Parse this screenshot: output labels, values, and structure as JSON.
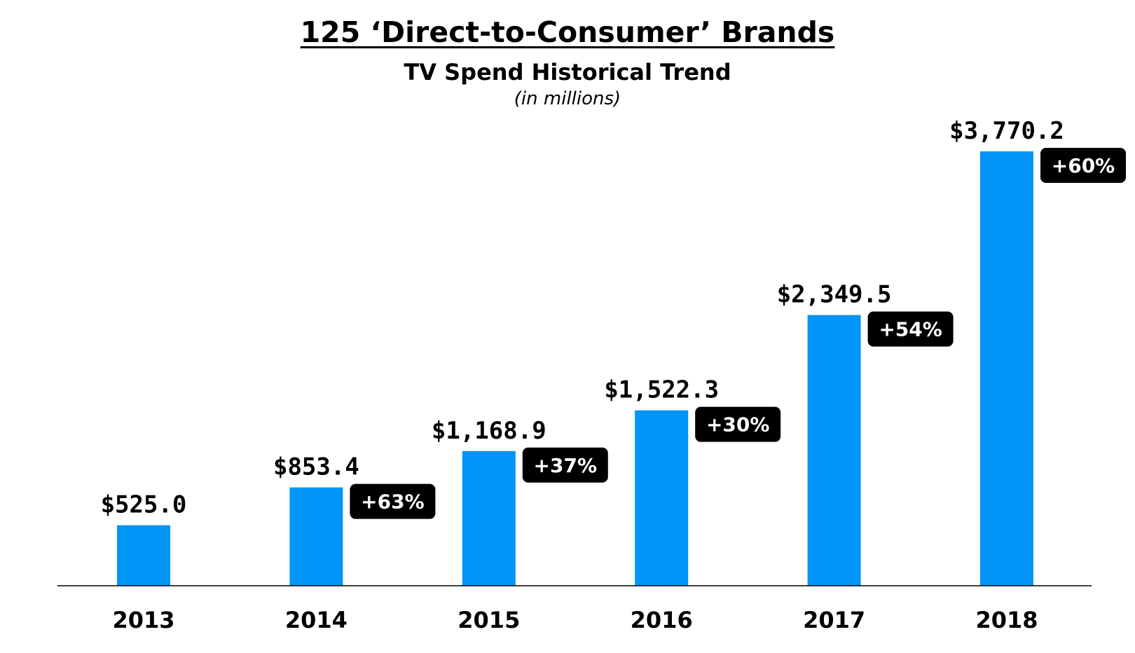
{
  "title": "125 ‘Direct-to-Consumer’ Brands",
  "subtitle": "TV Spend Historical Trend",
  "units": "(in millions)",
  "colors": {
    "bar": "#0095F6",
    "badge_bg": "#000000",
    "badge_text": "#FFFFFF",
    "axis": "#000000"
  },
  "chart_data": {
    "type": "bar",
    "categories": [
      "2013",
      "2014",
      "2015",
      "2016",
      "2017",
      "2018"
    ],
    "values": [
      525.0,
      853.4,
      1168.9,
      1522.3,
      2349.5,
      3770.2
    ],
    "value_labels": [
      "$525.0",
      "$853.4",
      "$1,168.9",
      "$1,522.3",
      "$2,349.5",
      "$3,770.2"
    ],
    "growth_labels": [
      null,
      "+63%",
      "+37%",
      "+30%",
      "+54%",
      "+60%"
    ],
    "title": "125 ‘Direct-to-Consumer’ Brands",
    "subtitle": "TV Spend Historical Trend",
    "units": "(in millions)",
    "xlabel": "",
    "ylabel": "",
    "ylim": [
      0,
      3800
    ],
    "grid": false,
    "legend": "none"
  }
}
